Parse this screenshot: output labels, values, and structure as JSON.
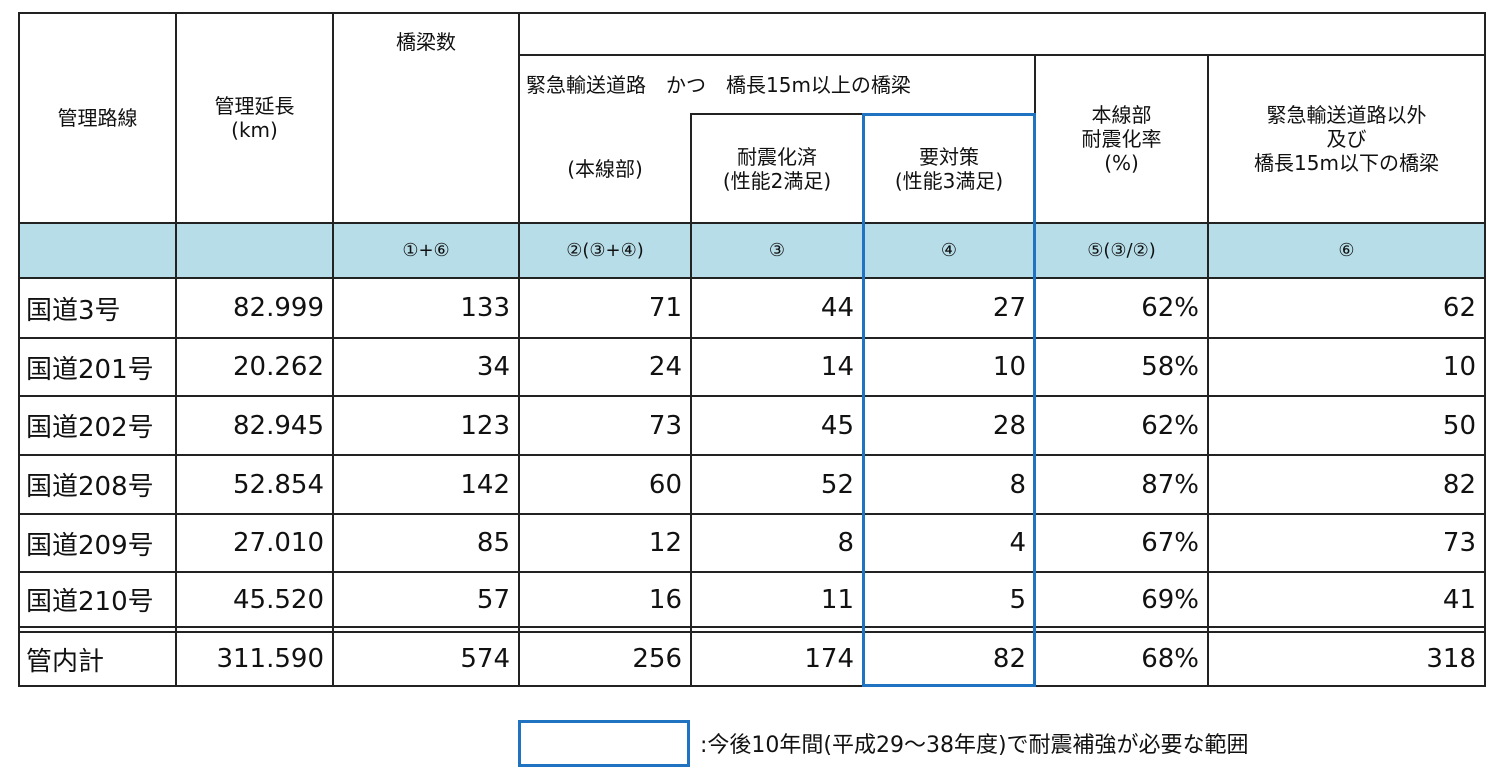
{
  "headers": {
    "route": "管理路線",
    "length_line1": "管理延長",
    "length_line2": "(km)",
    "bridges": "橋梁数",
    "emergency_group": "緊急輸送道路　かつ　橋長15m以上の橋梁",
    "main": "(本線部)",
    "done_line1": "耐震化済",
    "done_line2": "(性能2満足)",
    "needed_line1": "要対策",
    "needed_line2": "(性能3満足)",
    "rate_line1": "本線部",
    "rate_line2": "耐震化率",
    "rate_line3": "(%)",
    "other_line1": "緊急輸送道路以外",
    "other_line2": "及び",
    "other_line3": "橋長15m以下の橋梁"
  },
  "formula_row": [
    "",
    "",
    "①+⑥",
    "②(③+④)",
    "③",
    "④",
    "⑤(③/②)",
    "⑥"
  ],
  "rows": [
    {
      "route": "国道3号",
      "length": "82.999",
      "bridges": "133",
      "main": "71",
      "done": "44",
      "needed": "27",
      "rate": "62%",
      "other": "62"
    },
    {
      "route": "国道201号",
      "length": "20.262",
      "bridges": "34",
      "main": "24",
      "done": "14",
      "needed": "10",
      "rate": "58%",
      "other": "10"
    },
    {
      "route": "国道202号",
      "length": "82.945",
      "bridges": "123",
      "main": "73",
      "done": "45",
      "needed": "28",
      "rate": "62%",
      "other": "50"
    },
    {
      "route": "国道208号",
      "length": "52.854",
      "bridges": "142",
      "main": "60",
      "done": "52",
      "needed": "8",
      "rate": "87%",
      "other": "82"
    },
    {
      "route": "国道209号",
      "length": "27.010",
      "bridges": "85",
      "main": "12",
      "done": "8",
      "needed": "4",
      "rate": "67%",
      "other": "73"
    },
    {
      "route": "国道210号",
      "length": "45.520",
      "bridges": "57",
      "main": "16",
      "done": "11",
      "needed": "5",
      "rate": "69%",
      "other": "41"
    }
  ],
  "total": {
    "route": "管内計",
    "length": "311.590",
    "bridges": "574",
    "main": "256",
    "done": "174",
    "needed": "82",
    "rate": "68%",
    "other": "318"
  },
  "legend": ":今後10年間(平成29〜38年度)で耐震補強が必要な範囲",
  "highlight_color": "#1f73c0",
  "band_color": "#b7dde8"
}
